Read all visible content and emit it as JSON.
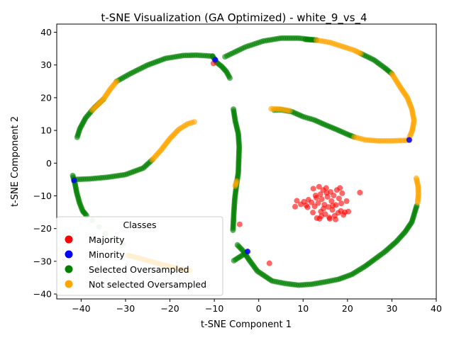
{
  "chart_data": {
    "type": "scatter",
    "title": "t-SNE Visualization (GA Optimized) - white_9_vs_4",
    "xlabel": "t-SNE Component 1",
    "ylabel": "t-SNE Component 2",
    "xlim": [
      -45.5,
      40
    ],
    "ylim": [
      -41.5,
      42.5
    ],
    "xticks": [
      "−40",
      "−30",
      "−20",
      "−10",
      "0",
      "10",
      "20",
      "30",
      "40"
    ],
    "yticks": [
      "−40",
      "−30",
      "−20",
      "−10",
      "0",
      "10",
      "20",
      "30",
      "40"
    ],
    "grid": false,
    "legend": {
      "title": "Classes",
      "placement": "lower-left",
      "entries": [
        "Majority",
        "Minority",
        "Selected Oversampled",
        "Not selected Oversampled"
      ]
    },
    "colors": {
      "majority": "#ff0000",
      "minority": "#0000ff",
      "selected": "#008000",
      "not_selected": "#ffa500"
    },
    "series": [
      {
        "name": "Majority",
        "color": "#ff0000",
        "points": [
          [
            -10.2,
            30.5
          ],
          [
            -4.3,
            -18.7
          ],
          [
            2.4,
            -30.6
          ],
          [
            22.8,
            -9.0
          ],
          [
            19.8,
            -11.6
          ],
          [
            20.2,
            -14.8
          ],
          [
            8.2,
            -13.3
          ],
          [
            8.6,
            -11.5
          ],
          [
            9.5,
            -12.6
          ],
          [
            10.2,
            -11.8
          ],
          [
            10.7,
            -12.9
          ],
          [
            11.2,
            -11.2
          ],
          [
            11.9,
            -12.0
          ],
          [
            12.3,
            -7.8
          ],
          [
            12.6,
            -13.2
          ],
          [
            13.0,
            -10.6
          ],
          [
            13.1,
            -16.8
          ],
          [
            13.4,
            -12.2
          ],
          [
            13.6,
            -7.2
          ],
          [
            13.9,
            -9.5
          ],
          [
            14.0,
            -14.8
          ],
          [
            14.2,
            -11.0
          ],
          [
            14.5,
            -8.2
          ],
          [
            14.8,
            -12.7
          ],
          [
            15.0,
            -15.6
          ],
          [
            15.2,
            -7.6
          ],
          [
            15.5,
            -10.3
          ],
          [
            15.7,
            -13.4
          ],
          [
            15.9,
            -16.6
          ],
          [
            16.2,
            -8.8
          ],
          [
            16.4,
            -11.6
          ],
          [
            16.6,
            -14.3
          ],
          [
            16.9,
            -9.9
          ],
          [
            17.1,
            -16.1
          ],
          [
            17.4,
            -12.8
          ],
          [
            17.6,
            -8.2
          ],
          [
            17.9,
            -15.2
          ],
          [
            18.1,
            -10.8
          ],
          [
            18.3,
            -7.6
          ],
          [
            18.5,
            -14.6
          ],
          [
            18.8,
            -9.2
          ],
          [
            19.1,
            -15.8
          ],
          [
            12.2,
            -15.1
          ],
          [
            13.7,
            -17.0
          ],
          [
            16.0,
            -17.0
          ],
          [
            17.3,
            -17.2
          ],
          [
            11.0,
            -13.5
          ],
          [
            14.6,
            -13.9
          ],
          [
            15.3,
            -9.1
          ],
          [
            16.7,
            -13.0
          ],
          [
            12.8,
            -9.9
          ],
          [
            18.6,
            -12.3
          ],
          [
            19.4,
            -15.0
          ],
          [
            14.1,
            -16.2
          ]
        ]
      },
      {
        "name": "Minority",
        "color": "#0000ff",
        "points": [
          [
            -41.6,
            -5.3
          ],
          [
            -9.8,
            31.6
          ],
          [
            -2.5,
            -27.0
          ],
          [
            33.9,
            7.1
          ]
        ]
      },
      {
        "name": "Selected Oversampled",
        "color": "#008000",
        "polylines": [
          [
            [
              -10.4,
              32.7
            ],
            [
              -14,
              33.0
            ],
            [
              -17,
              32.9
            ],
            [
              -21,
              32.0
            ],
            [
              -25,
              30.0
            ],
            [
              -29,
              27.3
            ],
            [
              -32,
              25.0
            ]
          ],
          [
            [
              -35,
              19.5
            ],
            [
              -37,
              17.0
            ],
            [
              -39,
              13.8
            ],
            [
              -40.3,
              10.5
            ],
            [
              -40.9,
              7.9
            ]
          ],
          [
            [
              -6.5,
              26.0
            ],
            [
              -7.3,
              28.0
            ],
            [
              -8.3,
              29.5
            ],
            [
              -9.5,
              30.8
            ],
            [
              -10.4,
              32.7
            ]
          ],
          [
            [
              -7.6,
              32.5
            ],
            [
              -3,
              35.5
            ],
            [
              1,
              37.3
            ],
            [
              5,
              38.2
            ],
            [
              9,
              38.2
            ],
            [
              11,
              37.9
            ],
            [
              13,
              37.6
            ]
          ],
          [
            [
              23,
              33.5
            ],
            [
              26,
              31.5
            ],
            [
              28.5,
              29.0
            ],
            [
              30,
              27.3
            ]
          ],
          [
            [
              -24,
              1.0
            ],
            [
              -26,
              -1.5
            ],
            [
              -30,
              -3.5
            ],
            [
              -34,
              -4.3
            ],
            [
              -38,
              -4.8
            ],
            [
              -41.5,
              -5.0
            ]
          ],
          [
            [
              -41.9,
              -3.8
            ],
            [
              -41.4,
              -6.2
            ],
            [
              -41.0,
              -9.0
            ],
            [
              -40.4,
              -12.0
            ],
            [
              -39.7,
              -14.5
            ],
            [
              -38.8,
              -16.0
            ]
          ],
          [
            [
              -5.7,
              16.5
            ],
            [
              -5.3,
              13.0
            ],
            [
              -4.6,
              9.0
            ],
            [
              -4.4,
              5.0
            ],
            [
              -4.5,
              1.0
            ],
            [
              -4.6,
              -3.0
            ],
            [
              -5.0,
              -6.5
            ],
            [
              -5.4,
              -11.0
            ],
            [
              -5.6,
              -15.0
            ],
            [
              -5.8,
              -20.5
            ]
          ],
          [
            [
              -5.6,
              -29.8
            ],
            [
              -3.5,
              -28.0
            ],
            [
              -2.8,
              -27.3
            ]
          ],
          [
            [
              -4.8,
              -25.0
            ],
            [
              -3.4,
              -27.0
            ],
            [
              -2.2,
              -29.5
            ],
            [
              -0.3,
              -33.0
            ],
            [
              3,
              -36.0
            ],
            [
              6,
              -36.8
            ],
            [
              9,
              -37.3
            ],
            [
              12,
              -37.0
            ],
            [
              15,
              -36.3
            ],
            [
              18,
              -35.5
            ],
            [
              21,
              -34.0
            ],
            [
              24,
              -31.5
            ],
            [
              26,
              -29.5
            ],
            [
              28.5,
              -27.0
            ],
            [
              31,
              -24.0
            ],
            [
              33,
              -21.0
            ],
            [
              34.5,
              -18.0
            ],
            [
              35.6,
              -13.0
            ]
          ],
          [
            [
              3.5,
              16.2
            ],
            [
              5,
              16.3
            ],
            [
              7.5,
              15.7
            ],
            [
              10,
              14.2
            ],
            [
              12.5,
              13.2
            ],
            [
              15,
              11.7
            ],
            [
              17.5,
              10.3
            ],
            [
              20,
              8.8
            ],
            [
              21.5,
              8.0
            ]
          ],
          [
            [
              10.5,
              37.8
            ],
            [
              13,
              37.6
            ]
          ]
        ],
        "points": [
          [
            -39.5,
            -15.0
          ],
          [
            -37.5,
            -17.5
          ],
          [
            -36,
            -19.5
          ],
          [
            -34.5,
            -21.5
          ],
          [
            -32.7,
            -23.2
          ],
          [
            -30.5,
            -24.8
          ]
        ]
      },
      {
        "name": "Not selected Oversampled",
        "color": "#ffa500",
        "polylines": [
          [
            [
              -32,
              25.0
            ],
            [
              -33.5,
              22.5
            ],
            [
              -35,
              19.5
            ],
            [
              -36.5,
              17.5
            ],
            [
              -37.5,
              16.2
            ]
          ],
          [
            [
              -14.5,
              12.6
            ],
            [
              -16,
              12.0
            ],
            [
              -18,
              10.3
            ],
            [
              -20,
              7.5
            ],
            [
              -22,
              4.0
            ],
            [
              -24,
              1.0
            ]
          ],
          [
            [
              13,
              37.6
            ],
            [
              16,
              36.9
            ],
            [
              19,
              35.6
            ],
            [
              21.5,
              34.5
            ],
            [
              23,
              33.5
            ]
          ],
          [
            [
              30,
              27.3
            ],
            [
              32,
              23.0
            ],
            [
              33.5,
              20.0
            ],
            [
              34.5,
              16.5
            ],
            [
              35.0,
              13.0
            ],
            [
              34.6,
              10.0
            ],
            [
              34,
              8.0
            ]
          ],
          [
            [
              21.5,
              8.0
            ],
            [
              24,
              7.1
            ],
            [
              27,
              6.8
            ],
            [
              30,
              6.8
            ],
            [
              32,
              6.9
            ],
            [
              34,
              7.0
            ]
          ],
          [
            [
              -29.5,
              -28.2
            ],
            [
              -27,
              -29.0
            ],
            [
              -24,
              -30.2
            ],
            [
              -21,
              -31.3
            ],
            [
              -18,
              -32.3
            ],
            [
              -15.5,
              -32.8
            ]
          ],
          [
            [
              -5.0,
              -5.5
            ],
            [
              -5.3,
              -7.0
            ]
          ],
          [
            [
              2.8,
              16.6
            ],
            [
              5,
              16.5
            ],
            [
              7,
              16.0
            ]
          ],
          [
            [
              35.5,
              -4.6
            ],
            [
              35.9,
              -7.0
            ],
            [
              36.0,
              -9.5
            ],
            [
              35.8,
              -12.0
            ]
          ]
        ]
      }
    ]
  }
}
